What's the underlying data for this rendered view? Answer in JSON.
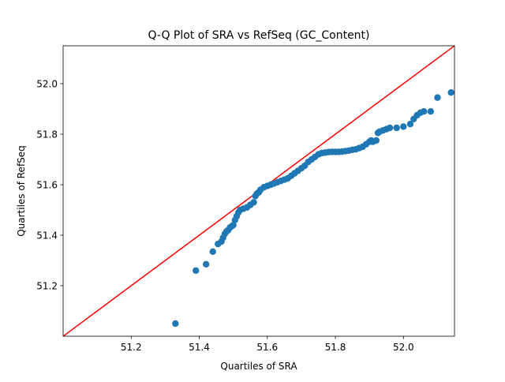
{
  "chart_data": {
    "type": "scatter",
    "title": "Q-Q Plot of SRA vs RefSeq (GC_Content)",
    "xlabel": "Quartiles of SRA",
    "ylabel": "Quartiles of RefSeq",
    "xlim": [
      51.0,
      52.15
    ],
    "ylim": [
      51.0,
      52.15
    ],
    "xticks": [
      51.2,
      51.4,
      51.6,
      51.8,
      52.0
    ],
    "xtick_labels": [
      "51.2",
      "51.4",
      "51.6",
      "51.8",
      "52.0"
    ],
    "yticks": [
      51.2,
      51.4,
      51.6,
      51.8,
      52.0
    ],
    "ytick_labels": [
      "51.2",
      "51.4",
      "51.6",
      "51.8",
      "52.0"
    ],
    "grid": false,
    "reference_line": {
      "from": [
        51.0,
        51.0
      ],
      "to": [
        52.15,
        52.15
      ],
      "color": "#ff0000"
    },
    "marker_color": "#1f77b4",
    "series": [
      {
        "x": [
          51.33,
          51.39,
          51.42,
          51.44,
          51.455,
          51.465,
          51.47,
          51.475,
          51.48,
          51.485,
          51.49,
          51.495,
          51.5,
          51.505,
          51.51,
          51.515,
          51.52,
          51.53,
          51.54,
          51.55,
          51.56,
          51.565,
          51.57,
          51.575,
          51.58,
          51.59,
          51.6,
          51.61,
          51.62,
          51.63,
          51.64,
          51.65,
          51.66,
          51.67,
          51.68,
          51.69,
          51.7,
          51.71,
          51.72,
          51.73,
          51.74,
          51.75,
          51.76,
          51.77,
          51.78,
          51.79,
          51.8,
          51.81,
          51.82,
          51.83,
          51.84,
          51.85,
          51.86,
          51.87,
          51.88,
          51.89,
          51.9,
          51.905,
          51.91,
          51.92,
          51.925,
          51.93,
          51.94,
          51.95,
          51.96,
          51.98,
          52.0,
          52.02,
          52.03,
          52.04,
          52.05,
          52.06,
          52.08,
          52.1,
          52.14
        ],
        "y": [
          51.05,
          51.26,
          51.285,
          51.335,
          51.365,
          51.375,
          51.39,
          51.405,
          51.415,
          51.42,
          51.43,
          51.435,
          51.44,
          51.46,
          51.475,
          51.49,
          51.5,
          51.505,
          51.51,
          51.52,
          51.53,
          51.555,
          51.565,
          51.57,
          51.58,
          51.59,
          51.595,
          51.6,
          51.605,
          51.61,
          51.615,
          51.62,
          51.625,
          51.635,
          51.645,
          51.655,
          51.665,
          51.675,
          51.69,
          51.7,
          51.71,
          51.72,
          51.725,
          51.727,
          51.729,
          51.73,
          51.73,
          51.73,
          51.731,
          51.733,
          51.735,
          51.738,
          51.74,
          51.745,
          51.75,
          51.76,
          51.77,
          51.775,
          51.77,
          51.775,
          51.805,
          51.81,
          51.815,
          51.82,
          51.825,
          51.825,
          51.83,
          51.84,
          51.86,
          51.875,
          51.885,
          51.89,
          51.89,
          51.945,
          51.965
        ]
      }
    ]
  }
}
